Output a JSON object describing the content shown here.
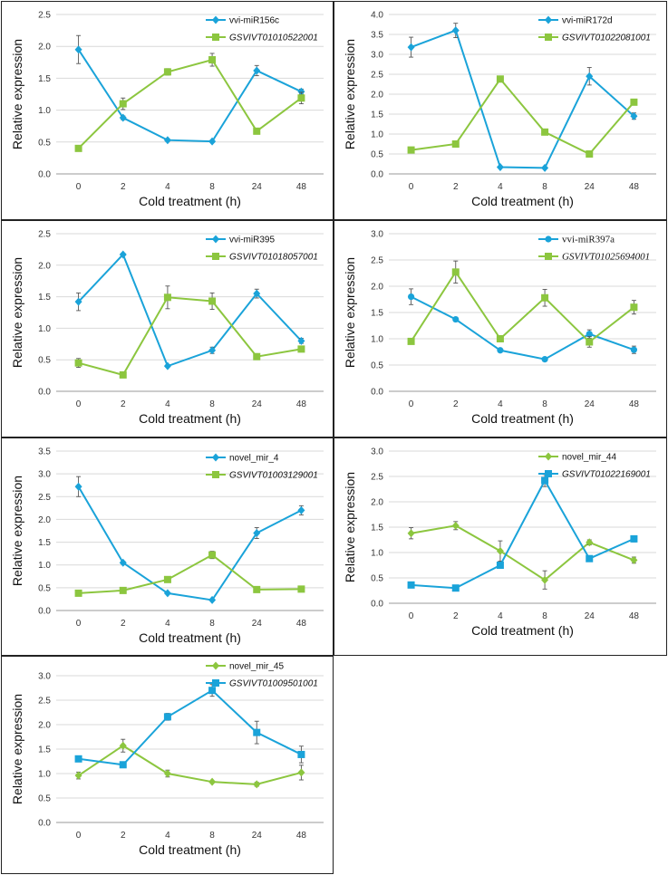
{
  "figure": {
    "x_categories": [
      "0",
      "2",
      "4",
      "8",
      "24",
      "48"
    ],
    "xlabel": "Cold treatment  (h)",
    "ylabel": "Relative expression",
    "colors": {
      "blue": "#1aa3d9",
      "green": "#8cc63f"
    }
  },
  "chart_data": [
    {
      "type": "line",
      "title": "",
      "categories": [
        "0",
        "2",
        "4",
        "8",
        "24",
        "48"
      ],
      "xlabel": "Cold treatment  (h)",
      "ylabel": "Relative expression",
      "ylim": [
        0,
        2.5
      ],
      "yticks": [
        "0.0",
        "0.5",
        "1.0",
        "1.5",
        "2.0",
        "2.5"
      ],
      "series": [
        {
          "name": "vvi-miR156c",
          "color": "#1aa3d9",
          "marker": "diamond",
          "italic": false,
          "values": [
            1.95,
            0.88,
            0.53,
            0.51,
            1.62,
            1.29
          ],
          "errors": [
            0.22,
            0.03,
            0.02,
            0.02,
            0.08,
            0.04
          ]
        },
        {
          "name": "GSVIVT01010522001",
          "color": "#8cc63f",
          "marker": "square",
          "italic": true,
          "values": [
            0.4,
            1.1,
            1.6,
            1.79,
            0.67,
            1.19
          ],
          "errors": [
            0.02,
            0.09,
            0.05,
            0.1,
            0.02,
            0.09
          ]
        }
      ]
    },
    {
      "type": "line",
      "title": "",
      "categories": [
        "0",
        "2",
        "4",
        "8",
        "24",
        "48"
      ],
      "xlabel": "Cold treatment  (h)",
      "ylabel": "Relative expression",
      "ylim": [
        0,
        4.0
      ],
      "yticks": [
        "0.0",
        "0.5",
        "1.0",
        "1.5",
        "2.0",
        "2.5",
        "3.0",
        "3.5",
        "4.0"
      ],
      "series": [
        {
          "name": "vvi-miR172d",
          "color": "#1aa3d9",
          "marker": "diamond",
          "italic": false,
          "values": [
            3.18,
            3.6,
            0.17,
            0.15,
            2.45,
            1.45
          ],
          "errors": [
            0.25,
            0.18,
            0.02,
            0.02,
            0.22,
            0.08
          ]
        },
        {
          "name": "GSVIVT01022081001",
          "color": "#8cc63f",
          "marker": "square",
          "italic": true,
          "values": [
            0.6,
            0.75,
            2.38,
            1.05,
            0.5,
            1.8
          ],
          "errors": [
            0.02,
            0.03,
            0.03,
            0.07,
            0.02,
            0.04
          ]
        }
      ]
    },
    {
      "type": "line",
      "title": "",
      "categories": [
        "0",
        "2",
        "4",
        "8",
        "24",
        "48"
      ],
      "xlabel": "Cold treatment  (h)",
      "ylabel": "Relative expression",
      "ylim": [
        0,
        2.5
      ],
      "yticks": [
        "0.0",
        "0.5",
        "1.0",
        "1.5",
        "2.0",
        "2.5"
      ],
      "series": [
        {
          "name": "vvi-miR395",
          "color": "#1aa3d9",
          "marker": "diamond",
          "italic": false,
          "values": [
            1.42,
            2.17,
            0.4,
            0.65,
            1.55,
            0.8
          ],
          "errors": [
            0.14,
            0.02,
            0.02,
            0.05,
            0.07,
            0.04
          ]
        },
        {
          "name": "GSVIVT01018057001",
          "color": "#8cc63f",
          "marker": "square",
          "italic": true,
          "values": [
            0.45,
            0.26,
            1.49,
            1.43,
            0.55,
            0.67
          ],
          "errors": [
            0.07,
            0.02,
            0.18,
            0.13,
            0.03,
            0.02
          ]
        }
      ]
    },
    {
      "type": "line",
      "title": "",
      "categories": [
        "0",
        "2",
        "4",
        "8",
        "24",
        "48"
      ],
      "xlabel": "Cold treatment  (h)",
      "ylabel": "Relative expression",
      "ylim": [
        0,
        3.0
      ],
      "yticks": [
        "0.0",
        "0.5",
        "1.0",
        "1.5",
        "2.0",
        "2.5",
        "3.0"
      ],
      "series": [
        {
          "name": "vvi-miR397a",
          "color": "#1aa3d9",
          "marker": "circle",
          "italic": false,
          "serif": true,
          "values": [
            1.8,
            1.37,
            0.78,
            0.61,
            1.09,
            0.79
          ],
          "errors": [
            0.15,
            0.02,
            0.02,
            0.03,
            0.08,
            0.07
          ]
        },
        {
          "name": "GSVIVT01025694001",
          "color": "#8cc63f",
          "marker": "square",
          "italic": true,
          "serif": true,
          "values": [
            0.95,
            2.27,
            1.0,
            1.78,
            0.94,
            1.6
          ],
          "errors": [
            0.02,
            0.21,
            0.02,
            0.16,
            0.1,
            0.13
          ]
        }
      ]
    },
    {
      "type": "line",
      "title": "",
      "categories": [
        "0",
        "2",
        "4",
        "8",
        "24",
        "48"
      ],
      "xlabel": "Cold treatment  (h)",
      "ylabel": "Relative expression",
      "ylim": [
        0,
        3.5
      ],
      "yticks": [
        "0.0",
        "0.5",
        "1.0",
        "1.5",
        "2.0",
        "2.5",
        "3.0",
        "3.5"
      ],
      "series": [
        {
          "name": "novel_mir_4",
          "color": "#1aa3d9",
          "marker": "diamond",
          "italic": false,
          "values": [
            2.72,
            1.05,
            0.38,
            0.23,
            1.7,
            2.2
          ],
          "errors": [
            0.22,
            0.03,
            0.02,
            0.02,
            0.12,
            0.1
          ]
        },
        {
          "name": "GSVIVT01003129001",
          "color": "#8cc63f",
          "marker": "square",
          "italic": true,
          "values": [
            0.38,
            0.44,
            0.68,
            1.22,
            0.46,
            0.47
          ],
          "errors": [
            0.02,
            0.02,
            0.03,
            0.08,
            0.02,
            0.02
          ]
        }
      ]
    },
    {
      "type": "line",
      "title": "",
      "categories": [
        "0",
        "2",
        "4",
        "8",
        "24",
        "48"
      ],
      "xlabel": "Cold treatment  (h)",
      "ylabel": "Relative expression",
      "ylim": [
        0,
        3.0
      ],
      "yticks": [
        "0.0",
        "0.5",
        "1.0",
        "1.5",
        "2.0",
        "2.5",
        "3.0"
      ],
      "series": [
        {
          "name": "novel_mir_44",
          "color": "#8cc63f",
          "marker": "diamond",
          "italic": false,
          "values": [
            1.38,
            1.53,
            1.03,
            0.46,
            1.2,
            0.85
          ],
          "errors": [
            0.11,
            0.08,
            0.2,
            0.18,
            0.05,
            0.06
          ]
        },
        {
          "name": "GSVIVT01022169001",
          "color": "#1aa3d9",
          "marker": "square",
          "italic": true,
          "values": [
            0.36,
            0.3,
            0.75,
            2.42,
            0.88,
            1.27
          ],
          "errors": [
            0.02,
            0.02,
            0.03,
            0.12,
            0.03,
            0.06
          ]
        }
      ]
    },
    {
      "type": "line",
      "title": "",
      "categories": [
        "0",
        "2",
        "4",
        "8",
        "24",
        "48"
      ],
      "xlabel": "Cold treatment  (h)",
      "ylabel": "Relative expression",
      "ylim": [
        0,
        3.0
      ],
      "yticks": [
        "0.0",
        "0.5",
        "1.0",
        "1.5",
        "2.0",
        "2.5",
        "3.0"
      ],
      "series": [
        {
          "name": "novel_mir_45",
          "color": "#8cc63f",
          "marker": "diamond",
          "italic": false,
          "values": [
            0.96,
            1.57,
            1.0,
            0.83,
            0.78,
            1.02
          ],
          "errors": [
            0.07,
            0.13,
            0.07,
            0.02,
            0.04,
            0.15
          ]
        },
        {
          "name": "GSVIVT01009501001",
          "color": "#1aa3d9",
          "marker": "square",
          "italic": true,
          "values": [
            1.3,
            1.18,
            2.16,
            2.7,
            1.84,
            1.39
          ],
          "errors": [
            0.03,
            0.03,
            0.07,
            0.12,
            0.23,
            0.17
          ]
        }
      ]
    }
  ]
}
